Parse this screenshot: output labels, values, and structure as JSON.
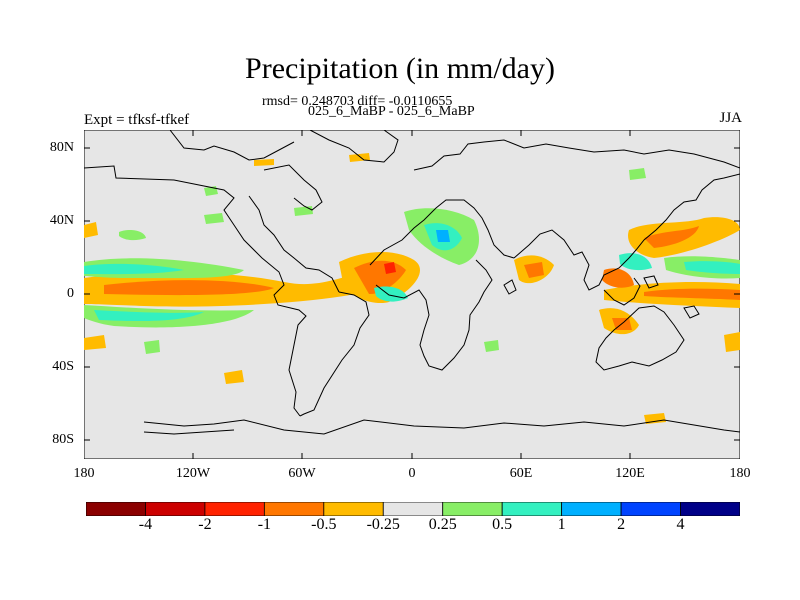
{
  "title": "Precipitation (in mm/day)",
  "stats": "rmsd= 0.248703 diff= -0.0110655",
  "subtitle": "025_6_MaBP - 025_6_MaBP",
  "left_label": "Expt = tfksf-tfkef",
  "right_label": "JJA",
  "y_ticks": [
    "80N",
    "40N",
    "0",
    "40S",
    "80S"
  ],
  "x_ticks": [
    "180",
    "120W",
    "60W",
    "0",
    "60E",
    "120E",
    "180"
  ],
  "colorbar": {
    "colors": [
      "#8b0000",
      "#cc0000",
      "#ff2200",
      "#ff7700",
      "#ffbb00",
      "#e6e6e6",
      "#88ee66",
      "#33f0c0",
      "#00b0ff",
      "#0044ff",
      "#000088"
    ],
    "labels": [
      "-4",
      "-2",
      "-1",
      "-0.5",
      "-0.25",
      "0.25",
      "0.5",
      "1",
      "2",
      "4"
    ]
  }
}
